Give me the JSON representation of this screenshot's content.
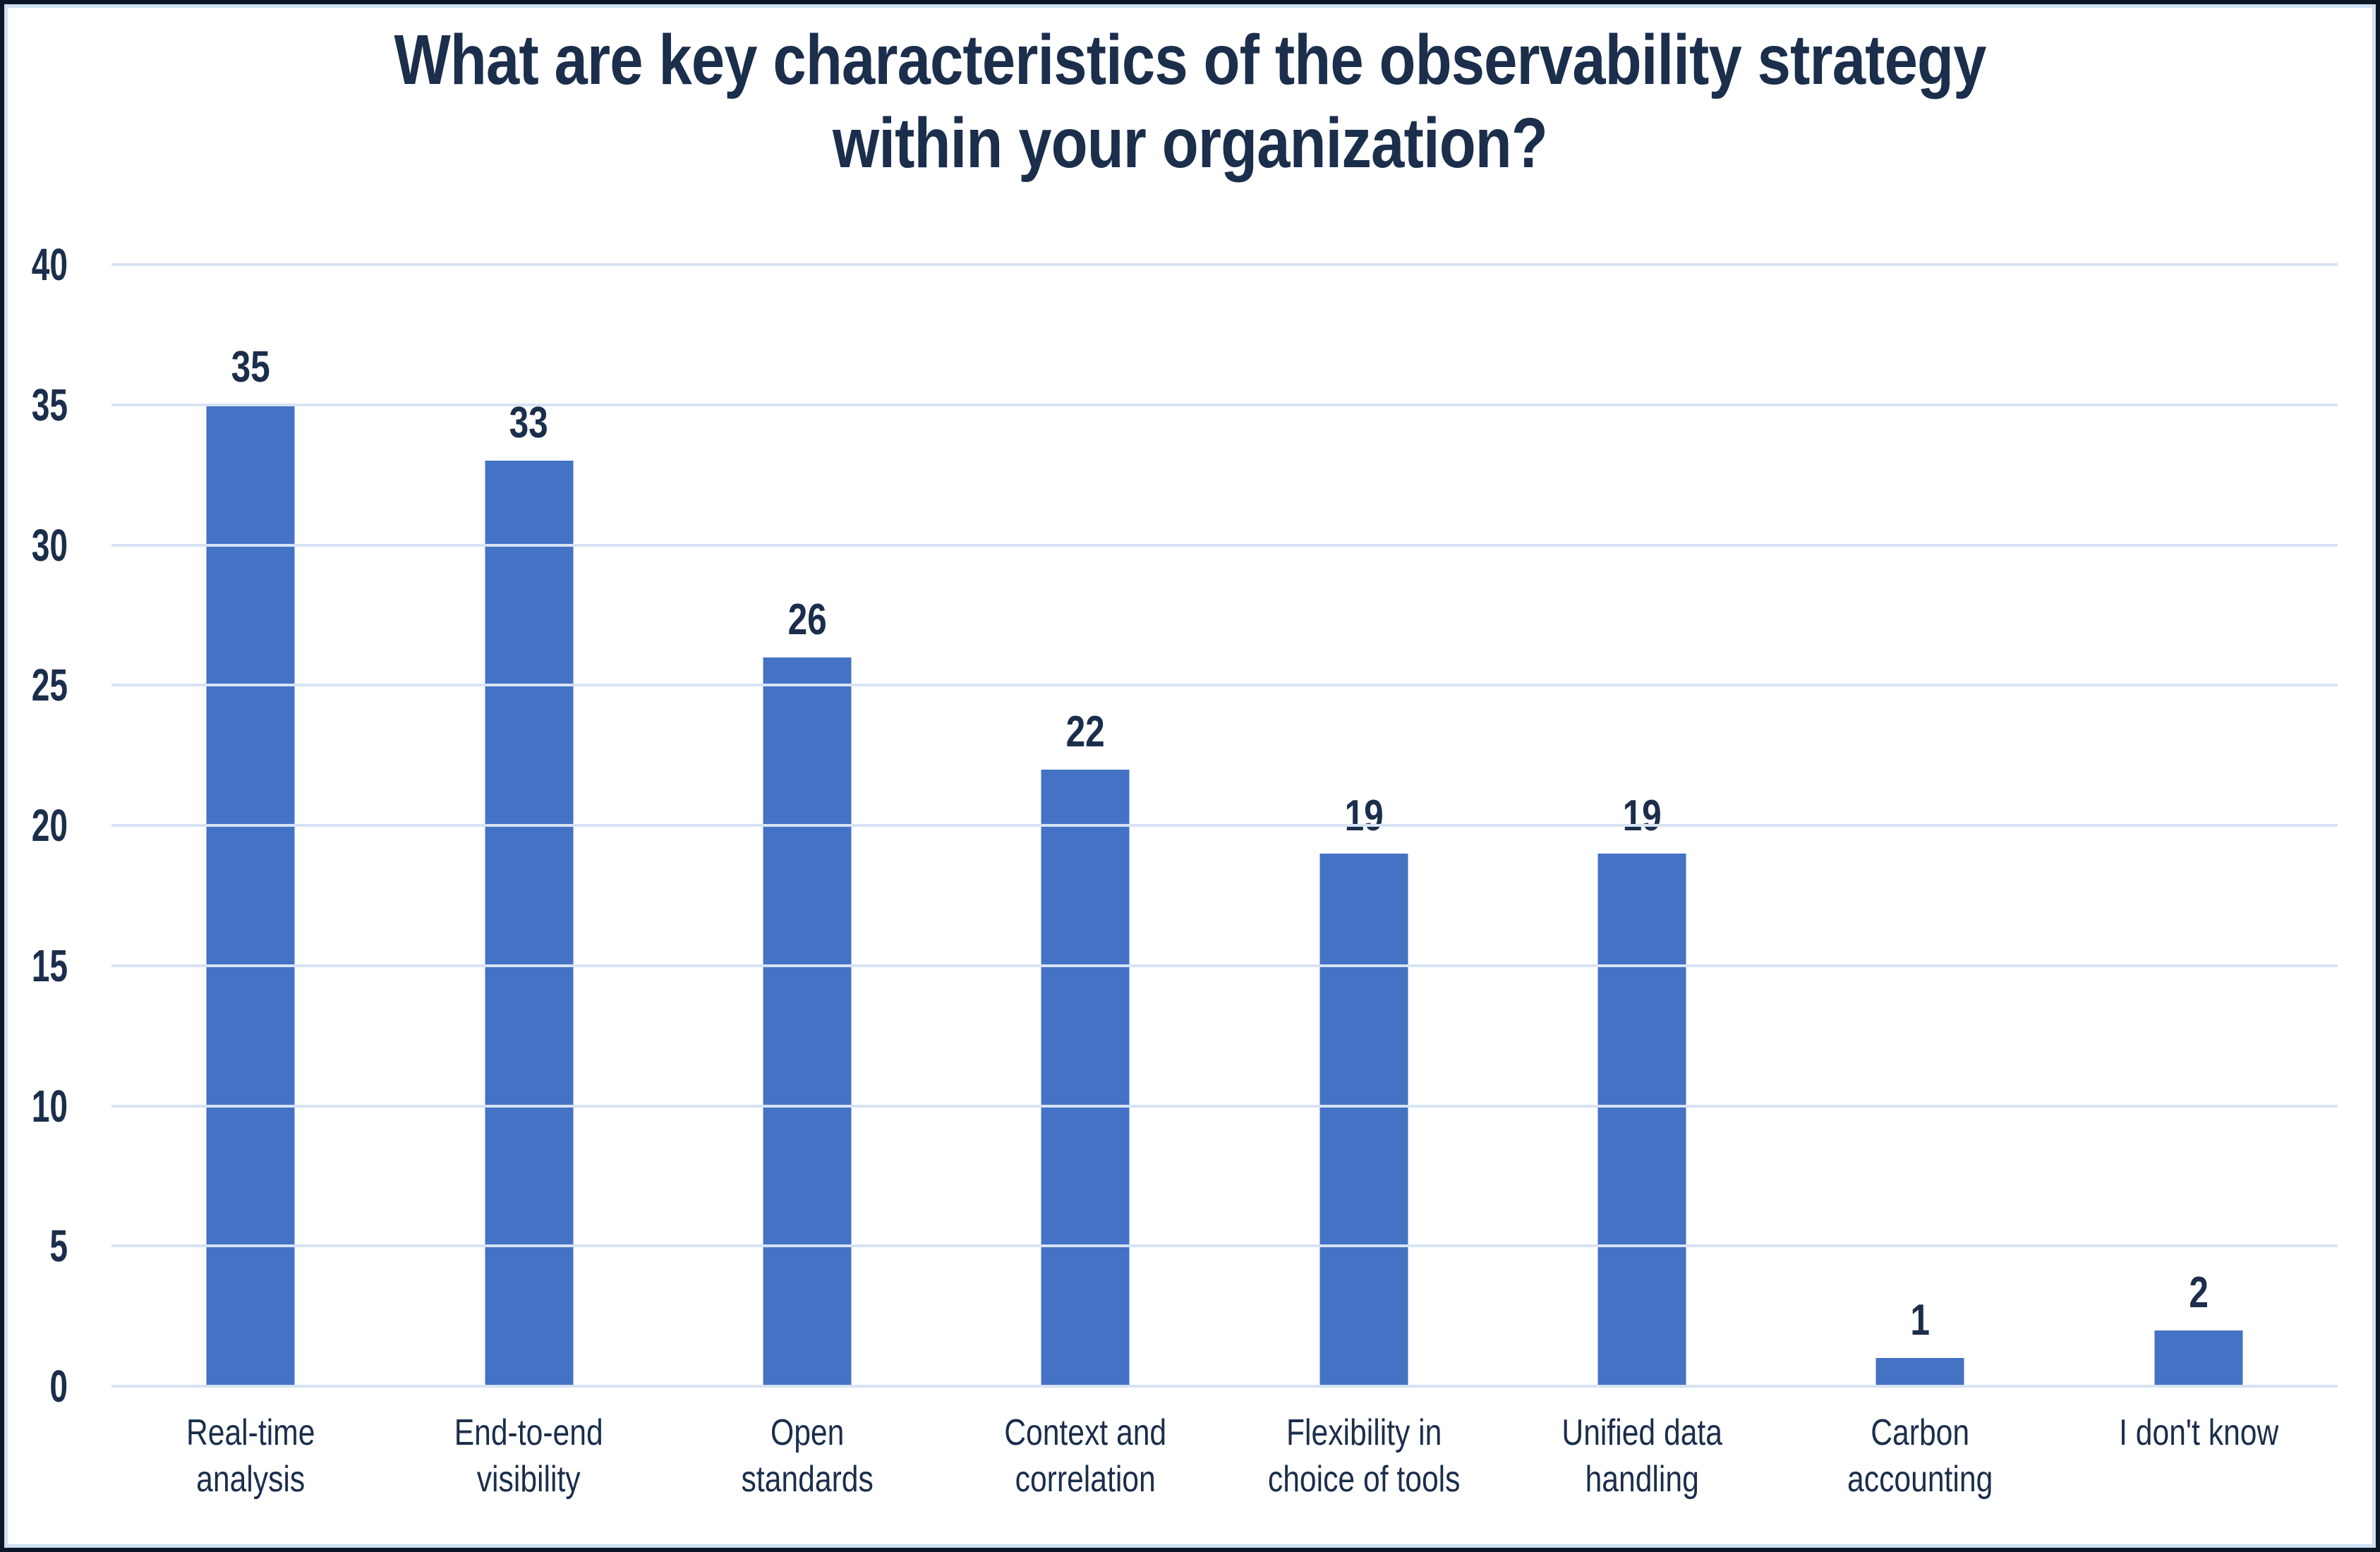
{
  "chart_data": {
    "type": "bar",
    "title": "What are key characteristics of the observability strategy within your organization?",
    "title_lines": [
      "What are key characteristics of the observability strategy",
      "within your organization?"
    ],
    "categories": [
      "Real-time analysis",
      "End-to-end visibility",
      "Open standards",
      "Context and correlation",
      "Flexibility in choice of tools",
      "Unified data handling",
      "Carbon accounting",
      "I don't know"
    ],
    "category_lines": [
      [
        "Real-time",
        "analysis"
      ],
      [
        "End-to-end",
        "visibility"
      ],
      [
        "Open",
        "standards"
      ],
      [
        "Context and",
        "correlation"
      ],
      [
        "Flexibility in",
        "choice of tools"
      ],
      [
        "Unified data",
        "handling"
      ],
      [
        "Carbon",
        "accounting"
      ],
      [
        "I don't know"
      ]
    ],
    "values": [
      35,
      33,
      26,
      22,
      19,
      19,
      1,
      2
    ],
    "data_labels_shown": true,
    "xlabel": "",
    "ylabel": "",
    "ylim": [
      0,
      40
    ],
    "yticks": [
      0,
      5,
      10,
      15,
      20,
      25,
      30,
      35,
      40
    ],
    "grid": "horizontal",
    "legend_position": "none",
    "colors": {
      "bar": "#4472C4",
      "text": "#1B2E4B",
      "gridline": "#D7E3F4",
      "outer_border": "#0D1726",
      "inner_border": "#CFE0F2",
      "background": "#FFFFFF"
    }
  }
}
